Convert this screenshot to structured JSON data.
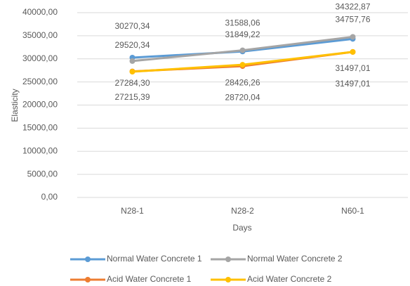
{
  "chart_data": {
    "type": "line",
    "categories": [
      "N28-1",
      "N28-2",
      "N60-1"
    ],
    "x_label": "Days",
    "y_label": "Elasticity",
    "series": [
      {
        "name": "Normal Water Concrete 1",
        "color": "#5b9bd5",
        "values": [
          30270.34,
          31588.06,
          34322.87
        ],
        "value_labels": [
          "30270,34",
          "31588,06",
          "34322,87"
        ]
      },
      {
        "name": "Normal Water Concrete 2",
        "color": "#a5a5a5",
        "values": [
          29520.34,
          31849.22,
          34757.76
        ],
        "value_labels": [
          "29520,34",
          "31849,22",
          "34757,76"
        ]
      },
      {
        "name": "Acid Water Concrete 1",
        "color": "#ed7d31",
        "values": [
          27284.3,
          28426.26,
          31497.01
        ],
        "value_labels": [
          "27284,30",
          "28426,26",
          "31497,01"
        ]
      },
      {
        "name": "Acid Water Concrete 2",
        "color": "#ffc000",
        "values": [
          27215.39,
          28720.04,
          31497.01
        ],
        "value_labels": [
          "27215,39",
          "28720,04",
          "31497,01"
        ]
      }
    ],
    "ylim": [
      0,
      40000
    ],
    "yticks": [
      {
        "value": 0,
        "label": "0,00"
      },
      {
        "value": 5000,
        "label": "5000,00"
      },
      {
        "value": 10000,
        "label": "10000,00"
      },
      {
        "value": 15000,
        "label": "15000,00"
      },
      {
        "value": 20000,
        "label": "20000,00"
      },
      {
        "value": 25000,
        "label": "25000,00"
      },
      {
        "value": 30000,
        "label": "30000,00"
      },
      {
        "value": 35000,
        "label": "35000,00"
      },
      {
        "value": 40000,
        "label": "40000,00"
      }
    ],
    "grid": true,
    "legend": "bottom"
  }
}
